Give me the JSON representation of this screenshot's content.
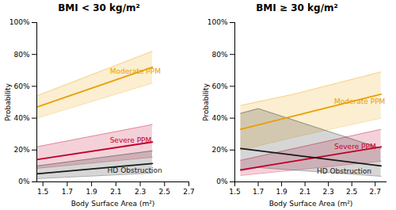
{
  "chart_data": [
    {
      "type": "line",
      "title": "BMI < 30 kg/m²",
      "x_label": "Body Surface Area (m²)",
      "y_label": "Probability",
      "xlim": [
        1.45,
        2.7
      ],
      "xticks": [
        1.5,
        1.7,
        1.9,
        2.1,
        2.3,
        2.5,
        2.7
      ],
      "ylim": [
        0,
        1.0
      ],
      "yticks": [
        {
          "value": 0,
          "label": "0%"
        },
        {
          "value": 0.2,
          "label": "20%"
        },
        {
          "value": 0.4,
          "label": "40%"
        },
        {
          "value": 0.6,
          "label": "60%"
        },
        {
          "value": 0.8,
          "label": "80%"
        },
        {
          "value": 1.0,
          "label": "100%"
        }
      ],
      "series": [
        {
          "color": "#E8A000",
          "x": [
            1.45,
            2.4
          ],
          "values": [
            0.47,
            0.72
          ],
          "ci_x": [
            1.45,
            2.4
          ],
          "ci_lower": [
            0.4,
            0.62
          ],
          "ci_upper": [
            0.54,
            0.82
          ]
        },
        {
          "color": "#C0002A",
          "x": [
            1.45,
            2.4
          ],
          "values": [
            0.14,
            0.25
          ],
          "ci_x": [
            1.45,
            2.4
          ],
          "ci_lower": [
            0.085,
            0.155
          ],
          "ci_upper": [
            0.22,
            0.36
          ]
        },
        {
          "color": "#1A1A1A",
          "x": [
            1.45,
            2.4
          ],
          "values": [
            0.05,
            0.115
          ],
          "ci_x": [
            1.45,
            2.4
          ],
          "ci_lower": [
            0.02,
            0.055
          ],
          "ci_upper": [
            0.1,
            0.195
          ]
        }
      ],
      "annotations": [
        {
          "text": "Moderate PPM",
          "x": 2.05,
          "y": 0.68,
          "color": "#E8A000"
        },
        {
          "text": "Severe PPM",
          "x": 2.05,
          "y": 0.245,
          "color": "#C0002A"
        },
        {
          "text": "HD Obstruction",
          "x": 2.03,
          "y": 0.09,
          "color": "#1A1A1A"
        }
      ]
    },
    {
      "type": "line",
      "title": "BMI ≥ 30 kg/m²",
      "x_label": "Body Surface Area (m²)",
      "y_label": "Probability",
      "xlim": [
        1.5,
        2.8
      ],
      "xticks": [
        1.5,
        1.7,
        1.9,
        2.1,
        2.3,
        2.5,
        2.7
      ],
      "ylim": [
        0,
        1.0
      ],
      "yticks": [
        {
          "value": 0,
          "label": "0%"
        },
        {
          "value": 0.2,
          "label": "20%"
        },
        {
          "value": 0.4,
          "label": "40%"
        },
        {
          "value": 0.6,
          "label": "60%"
        },
        {
          "value": 0.8,
          "label": "80%"
        },
        {
          "value": 1.0,
          "label": "100%"
        }
      ],
      "series": [
        {
          "color": "#E8A000",
          "x": [
            1.55,
            2.75
          ],
          "values": [
            0.33,
            0.55
          ],
          "ci_x": [
            1.55,
            2.0,
            2.75
          ],
          "ci_lower": [
            0.2,
            0.28,
            0.4
          ],
          "ci_upper": [
            0.48,
            0.55,
            0.69
          ]
        },
        {
          "color": "#C0002A",
          "x": [
            1.55,
            2.75
          ],
          "values": [
            0.075,
            0.22
          ],
          "ci_x": [
            1.55,
            2.75
          ],
          "ci_lower": [
            0.04,
            0.13
          ],
          "ci_upper": [
            0.135,
            0.33
          ]
        },
        {
          "color": "#1A1A1A",
          "x": [
            1.55,
            2.75
          ],
          "values": [
            0.21,
            0.1
          ],
          "ci_x": [
            1.55,
            1.7,
            2.75
          ],
          "ci_lower": [
            0.07,
            0.09,
            0.035
          ],
          "ci_upper": [
            0.43,
            0.46,
            0.21
          ]
        }
      ],
      "annotations": [
        {
          "text": "Moderate PPM",
          "x": 2.35,
          "y": 0.49,
          "color": "#E8A000"
        },
        {
          "text": "Severe PPM",
          "x": 2.35,
          "y": 0.205,
          "color": "#C0002A"
        },
        {
          "text": "HD Obstruction",
          "x": 2.2,
          "y": 0.085,
          "color": "#1A1A1A"
        }
      ]
    }
  ]
}
